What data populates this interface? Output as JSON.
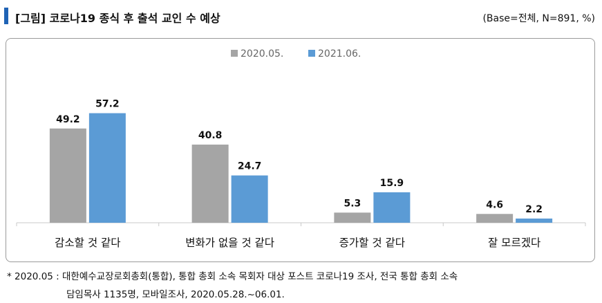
{
  "header": {
    "title": "[그림] 코로나19 종식 후 출석 교인 수 예상",
    "base_note": "(Base=전체, N=891, %)",
    "accent_color": "#1f63b5"
  },
  "chart_data": {
    "type": "bar",
    "title": "",
    "xlabel": "",
    "ylabel": "",
    "ylim": [
      0,
      65
    ],
    "grid": false,
    "legend_position": "top",
    "categories": [
      "감소할 것 같다",
      "변화가 없을 것 같다",
      "증가할 것 같다",
      "잘 모르겠다"
    ],
    "series": [
      {
        "name": "2020.05.",
        "color": "#a5a5a5",
        "values": [
          49.2,
          40.8,
          5.3,
          4.6
        ]
      },
      {
        "name": "2021.06.",
        "color": "#5b9bd5",
        "values": [
          57.2,
          24.7,
          15.9,
          2.2
        ]
      }
    ]
  },
  "footnote": {
    "line1": "* 2020.05 : 대한예수교장로회총회(통합), 통합 총회 소속 목회자 대상 포스트 코로나19 조사, 전국 통합 총회 소속",
    "line2": "담임목사 1135명, 모바일조사, 2020.05.28.~06.01."
  }
}
